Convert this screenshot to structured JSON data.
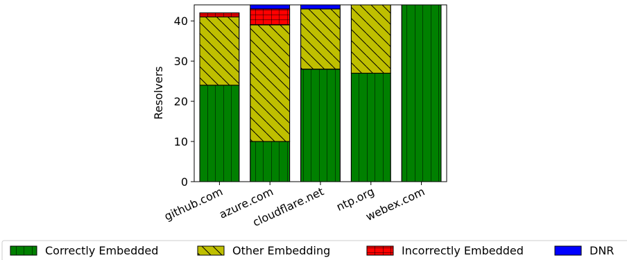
{
  "chart_data": {
    "type": "bar",
    "stacked": true,
    "title": "",
    "xlabel": "",
    "ylabel": "Resolvers",
    "ylim": [
      0,
      44
    ],
    "yticks": [
      0,
      10,
      20,
      30,
      40
    ],
    "categories": [
      "github.com",
      "azure.com",
      "cloudflare.net",
      "ntp.org",
      "webex.com"
    ],
    "series": [
      {
        "name": "Correctly Embedded",
        "color": "#008000",
        "hatch": "vertical",
        "values": [
          24,
          10,
          28,
          27,
          44
        ]
      },
      {
        "name": "Other Embedding",
        "color": "#bfbf00",
        "hatch": "backslash",
        "values": [
          17,
          29,
          15,
          17,
          0
        ]
      },
      {
        "name": "Incorrectly Embedded",
        "color": "#ff0000",
        "hatch": "grid",
        "values": [
          1,
          4,
          0,
          0,
          0
        ]
      },
      {
        "name": "DNR",
        "color": "#0000ff",
        "hatch": "none",
        "values": [
          0,
          1,
          1,
          0,
          0
        ]
      }
    ],
    "legend": "bottom",
    "grid": false
  }
}
